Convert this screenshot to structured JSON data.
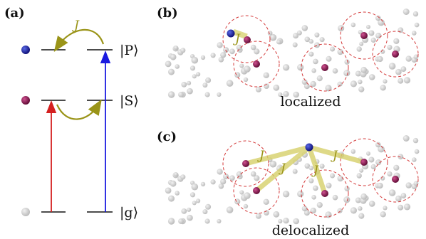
{
  "panels": {
    "a": {
      "tag": "(a)",
      "states": [
        "|P⟩",
        "|S⟩",
        "|g⟩"
      ],
      "coupling_label": "J"
    },
    "b": {
      "tag": "(b)",
      "caption": "localized",
      "coupling_label": "J"
    },
    "c": {
      "tag": "(c)",
      "caption": "delocalized",
      "coupling_labels": [
        "J",
        "J",
        "J",
        "J"
      ]
    }
  },
  "colors": {
    "p_state": "#1a1aa8",
    "s_state": "#9a1a5a",
    "g_state": "#cfcfcf",
    "coupling": "#9a9418",
    "arrow_red": "#d42020",
    "arrow_blue": "#1a1ae0",
    "circle": "#d43a3a"
  }
}
